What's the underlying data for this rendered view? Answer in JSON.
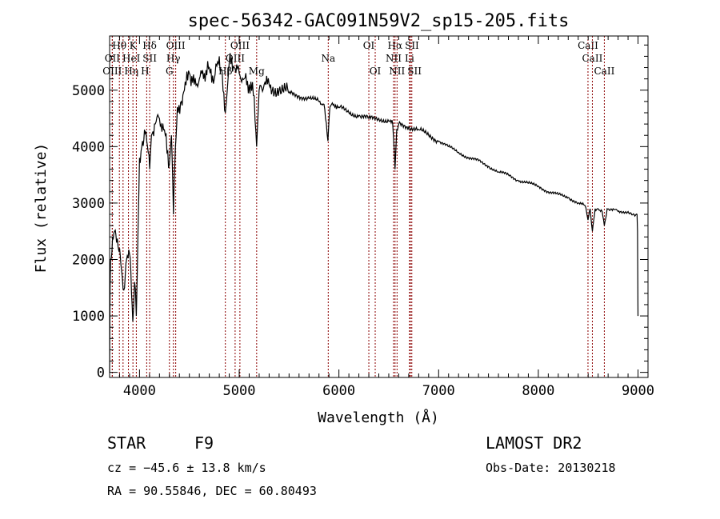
{
  "chart_data": {
    "type": "line",
    "title": "spec-56342-GAC091N59V2_sp15-205.fits",
    "xlabel": "Wavelength (Å)",
    "ylabel": "Flux (relative)",
    "xlim": [
      3700,
      9100
    ],
    "ylim": [
      -90,
      5960
    ],
    "xticks": [
      4000,
      5000,
      6000,
      7000,
      8000,
      9000
    ],
    "yticks": [
      0,
      1000,
      2000,
      3000,
      4000,
      5000
    ],
    "grid": false,
    "series": [
      {
        "name": "spectrum",
        "x": [
          3700,
          3705,
          3710,
          3730,
          3750,
          3770,
          3800,
          3820,
          3850,
          3870,
          3900,
          3920,
          3933,
          3950,
          3968,
          3985,
          4000,
          4030,
          4050,
          4080,
          4102,
          4120,
          4150,
          4200,
          4250,
          4300,
          4320,
          4340,
          4360,
          4380,
          4420,
          4450,
          4500,
          4550,
          4600,
          4650,
          4700,
          4750,
          4800,
          4830,
          4861,
          4880,
          4900,
          4950,
          5000,
          5050,
          5100,
          5150,
          5175,
          5200,
          5250,
          5300,
          5400,
          5500,
          5600,
          5700,
          5800,
          5850,
          5890,
          5910,
          5950,
          6000,
          6100,
          6200,
          6300,
          6400,
          6500,
          6540,
          6563,
          6580,
          6600,
          6700,
          6800,
          6900,
          7000,
          7100,
          7200,
          7300,
          7400,
          7500,
          7600,
          7700,
          7800,
          7900,
          8000,
          8100,
          8200,
          8300,
          8400,
          8470,
          8498,
          8520,
          8542,
          8570,
          8600,
          8640,
          8662,
          8690,
          8750,
          8800,
          8900,
          8960,
          8990,
          8995,
          9000
        ],
        "y": [
          0,
          1500,
          2000,
          2400,
          2500,
          2300,
          2200,
          1800,
          1500,
          2000,
          2100,
          1400,
          900,
          1600,
          1000,
          2500,
          3800,
          4100,
          4300,
          4000,
          3600,
          4200,
          4400,
          4500,
          4300,
          3700,
          4200,
          2800,
          4000,
          4700,
          4800,
          5000,
          5300,
          5100,
          5200,
          5300,
          5400,
          5200,
          5600,
          5300,
          4600,
          5000,
          5500,
          5400,
          5300,
          5200,
          5100,
          4900,
          4000,
          5000,
          5100,
          5100,
          5000,
          4950,
          4900,
          4850,
          4800,
          4750,
          4100,
          4700,
          4750,
          4700,
          4600,
          4550,
          4500,
          4500,
          4450,
          4400,
          3600,
          4300,
          4400,
          4350,
          4300,
          4200,
          4100,
          4000,
          3900,
          3800,
          3750,
          3650,
          3550,
          3500,
          3400,
          3350,
          3300,
          3200,
          3150,
          3100,
          3000,
          2950,
          2700,
          2900,
          2500,
          2900,
          2900,
          2850,
          2600,
          2900,
          2900,
          2850,
          2850,
          2800,
          2800,
          2500,
          1000
        ]
      }
    ],
    "line_markers": [
      {
        "label": "Hθ",
        "wave": 3798,
        "row": 0
      },
      {
        "label": "K",
        "wave": 3934,
        "row": 0
      },
      {
        "label": "Hδ",
        "wave": 4102,
        "row": 0
      },
      {
        "label": "OIII",
        "wave": 4363,
        "row": 0
      },
      {
        "label": "OIII",
        "wave": 5007,
        "row": 0
      },
      {
        "label": "OI",
        "wave": 6300,
        "row": 0
      },
      {
        "label": "Hα",
        "wave": 6563,
        "row": 0
      },
      {
        "label": "SII",
        "wave": 6717,
        "row": 0
      },
      {
        "label": "CaII",
        "wave": 8498,
        "row": 0
      },
      {
        "label": "OII",
        "wave": 3727,
        "row": 1
      },
      {
        "label": "HeI",
        "wave": 3889,
        "row": 1
      },
      {
        "label": "SII",
        "wave": 4072,
        "row": 1
      },
      {
        "label": "Hγ",
        "wave": 4340,
        "row": 1
      },
      {
        "label": "OIII",
        "wave": 4959,
        "row": 1
      },
      {
        "label": "Na",
        "wave": 5893,
        "row": 1
      },
      {
        "label": "NII",
        "wave": 6548,
        "row": 1
      },
      {
        "label": "Li",
        "wave": 6708,
        "row": 1
      },
      {
        "label": "CaII",
        "wave": 8542,
        "row": 1
      },
      {
        "label": "OIII",
        "wave": 3727,
        "row": 2
      },
      {
        "label": "Hη",
        "wave": 3835,
        "row": 2
      },
      {
        "label": "H",
        "wave": 3968,
        "row": 2
      },
      {
        "label": "G",
        "wave": 4300,
        "row": 2
      },
      {
        "label": "Hβ",
        "wave": 4861,
        "row": 2
      },
      {
        "label": "Mg",
        "wave": 5175,
        "row": 2
      },
      {
        "label": "OI",
        "wave": 6364,
        "row": 2
      },
      {
        "label": "NII",
        "wave": 6583,
        "row": 2
      },
      {
        "label": "SII",
        "wave": 6731,
        "row": 2
      },
      {
        "label": "CaII",
        "wave": 8662,
        "row": 2
      }
    ],
    "marker_color": "#8b0000"
  },
  "footer": {
    "object_type": "STAR",
    "subclass": "F9",
    "survey": "LAMOST DR2",
    "cz": "cz = −45.6 ± 13.8 km/s",
    "obs_date": "Obs-Date: 20130218",
    "coords": "RA =  90.55846, DEC =  60.80493"
  }
}
